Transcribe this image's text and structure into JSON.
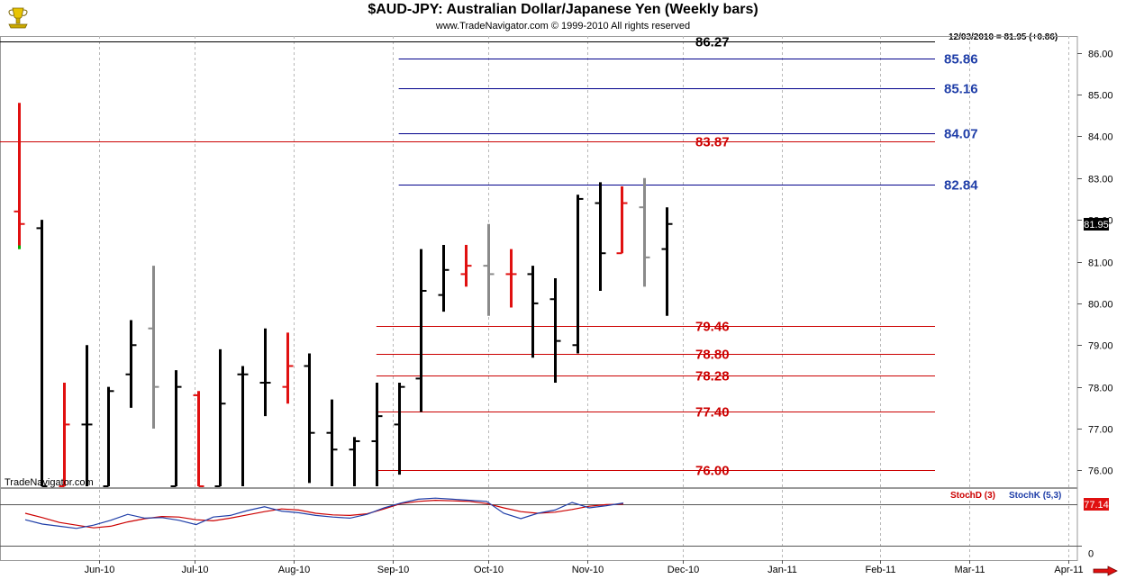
{
  "header": {
    "title": "$AUD-JPY:  Australian Dollar/Japanese Yen  (Weekly bars)",
    "subtitle": "www.TradeNavigator.com © 1999-2010 All rights reserved",
    "last_readout": "12/03/2010 = 81.95 (+0.86)",
    "watermark": "TradeNavigator.com",
    "logo_icon": "gold-trophy-icon",
    "scroll_icon": "red-right-arrow-icon"
  },
  "chart_data": [
    {
      "type": "ohlc",
      "series_name": "$AUD-JPY",
      "ylim": [
        75.6,
        86.4
      ],
      "yticks": [
        76.0,
        77.0,
        78.0,
        79.0,
        80.0,
        81.0,
        82.0,
        83.0,
        84.0,
        85.0,
        86.0
      ],
      "last_price_label": "81.95",
      "months": [
        "Jun-10",
        "Jul-10",
        "Aug-10",
        "Sep-10",
        "Oct-10",
        "Nov-10",
        "Dec-10",
        "Jan-11",
        "Feb-11",
        "Mar-11",
        "Apr-11"
      ],
      "bars": [
        {
          "date": "2010-05-07",
          "open": 82.2,
          "high": 84.8,
          "low": 81.3,
          "close": 81.9,
          "color": "red"
        },
        {
          "date": "2010-05-14",
          "open": 81.8,
          "high": 82.0,
          "low": 75.6,
          "close": 75.6,
          "color": "black"
        },
        {
          "date": "2010-05-21",
          "open": 75.6,
          "high": 78.1,
          "low": 75.6,
          "close": 77.1,
          "color": "red"
        },
        {
          "date": "2010-05-28",
          "open": 77.1,
          "high": 79.0,
          "low": 75.6,
          "close": 77.1,
          "color": "black"
        },
        {
          "date": "2010-06-04",
          "open": 75.6,
          "high": 78.0,
          "low": 75.6,
          "close": 77.9,
          "color": "black"
        },
        {
          "date": "2010-06-11",
          "open": 78.3,
          "high": 79.6,
          "low": 77.5,
          "close": 79.0,
          "color": "black"
        },
        {
          "date": "2010-06-18",
          "open": 79.4,
          "high": 80.9,
          "low": 77.0,
          "close": 78.0,
          "color": "gray"
        },
        {
          "date": "2010-06-25",
          "open": 75.6,
          "high": 78.4,
          "low": 75.6,
          "close": 78.0,
          "color": "black"
        },
        {
          "date": "2010-07-02",
          "open": 77.8,
          "high": 77.9,
          "low": 75.6,
          "close": 75.6,
          "color": "red"
        },
        {
          "date": "2010-07-09",
          "open": 75.6,
          "high": 78.9,
          "low": 75.6,
          "close": 77.6,
          "color": "black"
        },
        {
          "date": "2010-07-16",
          "open": 78.3,
          "high": 78.5,
          "low": 75.6,
          "close": 78.3,
          "color": "black"
        },
        {
          "date": "2010-07-23",
          "open": 78.1,
          "high": 79.4,
          "low": 77.3,
          "close": 78.1,
          "color": "black"
        },
        {
          "date": "2010-07-30",
          "open": 78.0,
          "high": 79.3,
          "low": 77.6,
          "close": 78.5,
          "color": "red"
        },
        {
          "date": "2010-08-06",
          "open": 78.5,
          "high": 78.8,
          "low": 75.7,
          "close": 76.9,
          "color": "black"
        },
        {
          "date": "2010-08-13",
          "open": 76.9,
          "high": 77.7,
          "low": 75.6,
          "close": 76.5,
          "color": "black"
        },
        {
          "date": "2010-08-20",
          "open": 76.5,
          "high": 76.8,
          "low": 75.6,
          "close": 76.7,
          "color": "black"
        },
        {
          "date": "2010-08-27",
          "open": 76.7,
          "high": 78.1,
          "low": 75.6,
          "close": 77.3,
          "color": "black"
        },
        {
          "date": "2010-09-03",
          "open": 77.1,
          "high": 78.1,
          "low": 75.9,
          "close": 78.0,
          "color": "black"
        },
        {
          "date": "2010-09-10",
          "open": 78.2,
          "high": 81.3,
          "low": 77.4,
          "close": 80.3,
          "color": "black"
        },
        {
          "date": "2010-09-17",
          "open": 80.2,
          "high": 81.4,
          "low": 79.8,
          "close": 80.8,
          "color": "black"
        },
        {
          "date": "2010-09-24",
          "open": 80.7,
          "high": 81.4,
          "low": 80.4,
          "close": 80.9,
          "color": "red"
        },
        {
          "date": "2010-10-01",
          "open": 80.9,
          "high": 81.9,
          "low": 79.7,
          "close": 80.7,
          "color": "gray"
        },
        {
          "date": "2010-10-08",
          "open": 80.7,
          "high": 81.3,
          "low": 79.9,
          "close": 80.7,
          "color": "red"
        },
        {
          "date": "2010-10-15",
          "open": 80.7,
          "high": 80.9,
          "low": 78.7,
          "close": 80.0,
          "color": "black"
        },
        {
          "date": "2010-10-22",
          "open": 80.1,
          "high": 80.6,
          "low": 78.1,
          "close": 79.1,
          "color": "black"
        },
        {
          "date": "2010-10-29",
          "open": 79.0,
          "high": 82.6,
          "low": 78.8,
          "close": 82.5,
          "color": "black"
        },
        {
          "date": "2010-11-05",
          "open": 82.4,
          "high": 82.9,
          "low": 80.3,
          "close": 81.2,
          "color": "black"
        },
        {
          "date": "2010-11-12",
          "open": 81.2,
          "high": 82.8,
          "low": 81.2,
          "close": 82.4,
          "color": "red"
        },
        {
          "date": "2010-11-19",
          "open": 82.3,
          "high": 83.0,
          "low": 80.4,
          "close": 81.1,
          "color": "gray"
        },
        {
          "date": "2010-11-26",
          "open": 81.3,
          "high": 82.3,
          "low": 79.7,
          "close": 81.9,
          "color": "black"
        }
      ],
      "levels": [
        {
          "value": 86.27,
          "label": "86.27",
          "color": "#000000",
          "start": "2010-05-01"
        },
        {
          "value": 85.86,
          "label": "85.86",
          "color": "#00008b",
          "start": "2010-09-03"
        },
        {
          "value": 85.16,
          "label": "85.16",
          "color": "#00008b",
          "start": "2010-09-03"
        },
        {
          "value": 84.07,
          "label": "84.07",
          "color": "#00008b",
          "start": "2010-09-03"
        },
        {
          "value": 83.87,
          "label": "83.87",
          "color": "#cc0000",
          "start": "2010-05-01"
        },
        {
          "value": 82.84,
          "label": "82.84",
          "color": "#00008b",
          "start": "2010-09-03"
        },
        {
          "value": 79.46,
          "label": "79.46",
          "color": "#cc0000",
          "start": "2010-08-27"
        },
        {
          "value": 78.8,
          "label": "78.80",
          "color": "#cc0000",
          "start": "2010-08-27"
        },
        {
          "value": 78.28,
          "label": "78.28",
          "color": "#cc0000",
          "start": "2010-08-27"
        },
        {
          "value": 77.4,
          "label": "77.40",
          "color": "#cc0000",
          "start": "2010-08-27"
        },
        {
          "value": 76.0,
          "label": "76.00",
          "color": "#cc0000",
          "start": "2010-08-27"
        }
      ]
    },
    {
      "type": "line",
      "ylim": [
        0,
        100
      ],
      "yticks": [
        0
      ],
      "reference_line": 77.14,
      "last_value_label": "77.14",
      "series": [
        {
          "name": "StochD (3)",
          "color": "#cc0000",
          "values": [
            60,
            52,
            43,
            38,
            33,
            36,
            44,
            50,
            54,
            53,
            48,
            46,
            51,
            57,
            63,
            68,
            66,
            60,
            57,
            56,
            59,
            68,
            78,
            82,
            84,
            83,
            82,
            78,
            70,
            63,
            60,
            62,
            67,
            73,
            76,
            77
          ]
        },
        {
          "name": "StochK (5,3)",
          "color": "#1f3ea8",
          "values": [
            48,
            40,
            36,
            32,
            38,
            47,
            58,
            51,
            52,
            47,
            39,
            53,
            56,
            65,
            72,
            64,
            61,
            56,
            53,
            51,
            58,
            70,
            79,
            86,
            88,
            86,
            84,
            82,
            60,
            50,
            60,
            66,
            80,
            70,
            74,
            79
          ]
        }
      ]
    }
  ]
}
